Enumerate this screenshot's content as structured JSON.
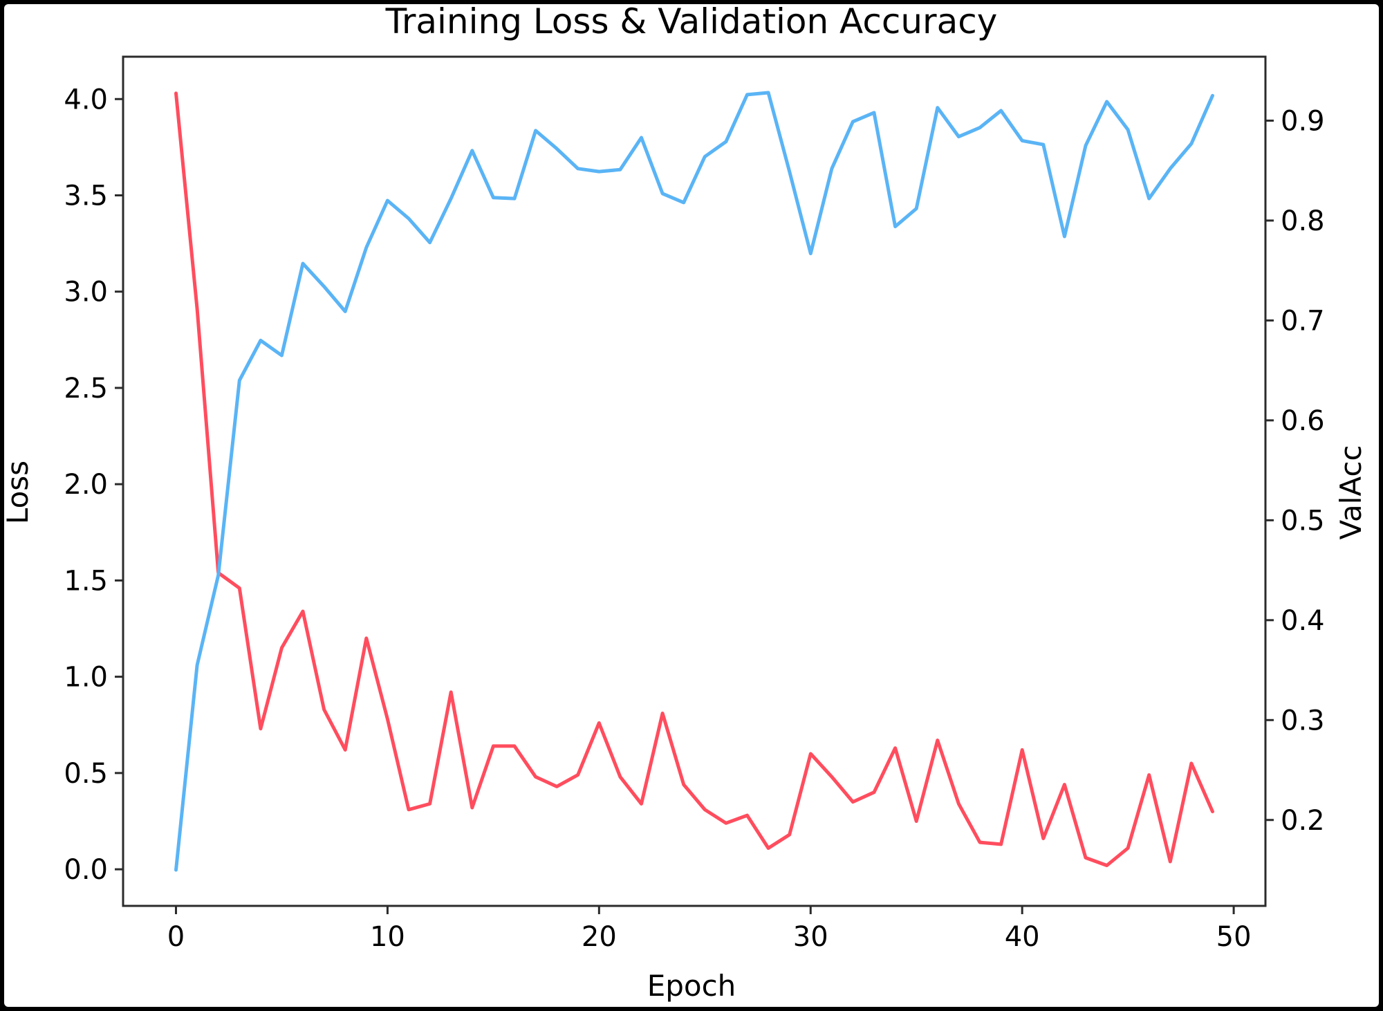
{
  "chart_data": {
    "type": "line",
    "title": "Training Loss & Validation Accuracy",
    "xlabel": "Epoch",
    "ylabel": "Loss",
    "y2label": "ValAcc",
    "xlim": [
      -2.5,
      51.5
    ],
    "ylim": [
      -0.19,
      4.22
    ],
    "y2lim": [
      0.114,
      0.964
    ],
    "xticks": [
      0,
      10,
      20,
      30,
      40,
      50
    ],
    "yticks": [
      0.0,
      0.5,
      1.0,
      1.5,
      2.0,
      2.5,
      3.0,
      3.5,
      4.0
    ],
    "y2ticks": [
      0.2,
      0.3,
      0.4,
      0.5,
      0.6,
      0.7,
      0.8,
      0.9
    ],
    "grid": false,
    "x": [
      0,
      1,
      2,
      3,
      4,
      5,
      6,
      7,
      8,
      9,
      10,
      11,
      12,
      13,
      14,
      15,
      16,
      17,
      18,
      19,
      20,
      21,
      22,
      23,
      24,
      25,
      26,
      27,
      28,
      29,
      30,
      31,
      32,
      33,
      34,
      35,
      36,
      37,
      38,
      39,
      40,
      41,
      42,
      43,
      44,
      45,
      46,
      47,
      48,
      49
    ],
    "series": [
      {
        "name": "Loss",
        "axis": "left",
        "color": "#ff4d5e",
        "values": [
          4.03,
          2.91,
          1.54,
          1.46,
          0.73,
          1.15,
          1.34,
          0.83,
          0.62,
          1.2,
          0.78,
          0.31,
          0.34,
          0.92,
          0.32,
          0.64,
          0.64,
          0.48,
          0.43,
          0.49,
          0.76,
          0.48,
          0.34,
          0.81,
          0.44,
          0.31,
          0.24,
          0.28,
          0.11,
          0.18,
          0.6,
          0.48,
          0.35,
          0.4,
          0.63,
          0.25,
          0.67,
          0.34,
          0.14,
          0.13,
          0.62,
          0.16,
          0.44,
          0.06,
          0.02,
          0.11,
          0.49,
          0.04,
          0.55,
          0.3
        ]
      },
      {
        "name": "ValAcc",
        "axis": "right",
        "color": "#5ab4f5",
        "values": [
          0.15,
          0.355,
          0.445,
          0.64,
          0.68,
          0.665,
          0.757,
          0.734,
          0.709,
          0.773,
          0.82,
          0.802,
          0.778,
          0.822,
          0.87,
          0.823,
          0.822,
          0.89,
          0.872,
          0.852,
          0.849,
          0.851,
          0.883,
          0.827,
          0.818,
          0.864,
          0.879,
          0.926,
          0.928,
          0.849,
          0.767,
          0.852,
          0.899,
          0.908,
          0.794,
          0.812,
          0.913,
          0.884,
          0.893,
          0.91,
          0.88,
          0.876,
          0.784,
          0.875,
          0.919,
          0.891,
          0.822,
          0.852,
          0.877,
          0.925
        ]
      }
    ]
  }
}
